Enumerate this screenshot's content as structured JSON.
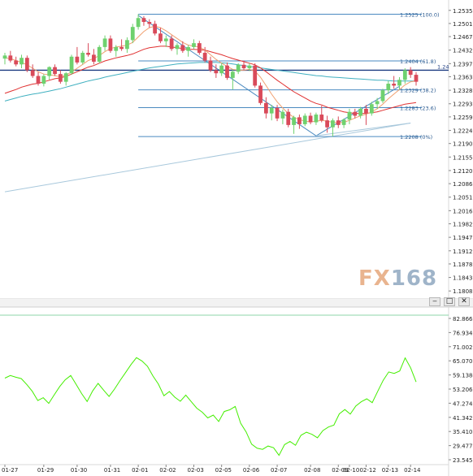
{
  "colors": {
    "background": "#ffffff",
    "grid": "#ececec",
    "up_candle": "#6fd16f",
    "down_candle": "#d94a5a",
    "ma_fast": "#f0a070",
    "ma_mid": "#e03030",
    "ma_slow": "#40b0c0",
    "trend_long": "#a8c8dc",
    "fib_line": "#4a8ac0",
    "current_price_line": "#1a3a80",
    "rsi_line": "#44ee00",
    "panel_separator": "#d0d0d0",
    "axis_text": "#222222"
  },
  "watermark": {
    "fx": "FX",
    "num": "168"
  },
  "window_buttons": {
    "minimize": "‒",
    "maximize": "□",
    "close": "✕"
  },
  "chart_data": [
    {
      "type": "candlestick",
      "panel": "price",
      "y_ticks": [
        "1.2535",
        "1.2501",
        "1.2467",
        "1.2432",
        "1.2397",
        "1.2363",
        "1.2328",
        "1.2293",
        "1.2259",
        "1.2224",
        "1.2190",
        "1.2155",
        "1.2120",
        "1.2086",
        "1.2051",
        "1.2016",
        "1.1982",
        "1.1947",
        "1.1912",
        "1.1878",
        "1.1843",
        "1.1808"
      ],
      "ylim": [
        1.18,
        1.2545
      ],
      "x_ticks": [
        "01-27",
        "01-29",
        "01-30",
        "01-31",
        "02-01",
        "02-02",
        "02-03",
        "02-05",
        "02-06",
        "02-07",
        "02-08",
        "02-09",
        "02-10",
        "02-12",
        "02-13",
        "02-14"
      ],
      "current_price_label": "1.24",
      "fibonacci": [
        {
          "label": "1.2525 (100.0)",
          "value": 1.2525
        },
        {
          "label": "1.2404 (61.8)",
          "value": 1.2404
        },
        {
          "label": "1.2329 (38.2)",
          "value": 1.2329
        },
        {
          "label": "1.2283 (23.6)",
          "value": 1.2283
        },
        {
          "label": "1.2208 (0%)",
          "value": 1.2208
        }
      ],
      "current_price": 1.238,
      "candles": [
        [
          1.241,
          1.2425,
          1.2395,
          1.2418
        ],
        [
          1.2418,
          1.243,
          1.24,
          1.2405
        ],
        [
          1.2405,
          1.2415,
          1.239,
          1.2395
        ],
        [
          1.2395,
          1.242,
          1.2385,
          1.2412
        ],
        [
          1.2412,
          1.2418,
          1.2375,
          1.238
        ],
        [
          1.238,
          1.2395,
          1.236,
          1.2365
        ],
        [
          1.2365,
          1.2375,
          1.234,
          1.2345
        ],
        [
          1.2345,
          1.237,
          1.2338,
          1.2365
        ],
        [
          1.2365,
          1.239,
          1.2355,
          1.2388
        ],
        [
          1.2388,
          1.2395,
          1.2365,
          1.237
        ],
        [
          1.237,
          1.238,
          1.2345,
          1.235
        ],
        [
          1.235,
          1.2375,
          1.234,
          1.2372
        ],
        [
          1.2372,
          1.242,
          1.2368,
          1.2415
        ],
        [
          1.2415,
          1.244,
          1.2395,
          1.24
        ],
        [
          1.24,
          1.243,
          1.2395,
          1.2425
        ],
        [
          1.2425,
          1.245,
          1.2415,
          1.242
        ],
        [
          1.242,
          1.2435,
          1.2395,
          1.2402
        ],
        [
          1.2402,
          1.2445,
          1.2398,
          1.244
        ],
        [
          1.244,
          1.247,
          1.243,
          1.2462
        ],
        [
          1.2462,
          1.247,
          1.2425,
          1.243
        ],
        [
          1.243,
          1.2445,
          1.2415,
          1.244
        ],
        [
          1.244,
          1.246,
          1.243,
          1.2435
        ],
        [
          1.2435,
          1.2465,
          1.2425,
          1.2458
        ],
        [
          1.2458,
          1.25,
          1.245,
          1.2492
        ],
        [
          1.2492,
          1.2525,
          1.2485,
          1.2515
        ],
        [
          1.2515,
          1.252,
          1.2495,
          1.2505
        ],
        [
          1.2505,
          1.2512,
          1.249,
          1.25
        ],
        [
          1.25,
          1.2508,
          1.247,
          1.2475
        ],
        [
          1.2475,
          1.249,
          1.245,
          1.2455
        ],
        [
          1.2455,
          1.247,
          1.244,
          1.2462
        ],
        [
          1.2462,
          1.247,
          1.243,
          1.2435
        ],
        [
          1.2435,
          1.245,
          1.242,
          1.2445
        ],
        [
          1.2445,
          1.2455,
          1.2425,
          1.243
        ],
        [
          1.243,
          1.2445,
          1.2415,
          1.244
        ],
        [
          1.244,
          1.246,
          1.2435,
          1.245
        ],
        [
          1.245,
          1.2456,
          1.242,
          1.2425
        ],
        [
          1.2425,
          1.244,
          1.24,
          1.2405
        ],
        [
          1.2405,
          1.2415,
          1.2375,
          1.238
        ],
        [
          1.238,
          1.2395,
          1.236,
          1.2372
        ],
        [
          1.2372,
          1.2398,
          1.2365,
          1.2392
        ],
        [
          1.2392,
          1.24,
          1.2355,
          1.236
        ],
        [
          1.236,
          1.2382,
          1.233,
          1.2376
        ],
        [
          1.2376,
          1.2398,
          1.237,
          1.2394
        ],
        [
          1.2394,
          1.2405,
          1.238,
          1.2385
        ],
        [
          1.2385,
          1.2398,
          1.2378,
          1.2392
        ],
        [
          1.2392,
          1.2398,
          1.2335,
          1.234
        ],
        [
          1.234,
          1.2348,
          1.229,
          1.2295
        ],
        [
          1.2295,
          1.231,
          1.2255,
          1.2268
        ],
        [
          1.2268,
          1.229,
          1.225,
          1.2282
        ],
        [
          1.2282,
          1.229,
          1.2248,
          1.2255
        ],
        [
          1.2255,
          1.2278,
          1.224,
          1.2272
        ],
        [
          1.2272,
          1.228,
          1.2232,
          1.2238
        ],
        [
          1.2238,
          1.2262,
          1.2215,
          1.2258
        ],
        [
          1.2258,
          1.2265,
          1.2228,
          1.224
        ],
        [
          1.224,
          1.2268,
          1.2235,
          1.2262
        ],
        [
          1.2262,
          1.227,
          1.224,
          1.2245
        ],
        [
          1.2245,
          1.227,
          1.2238,
          1.2265
        ],
        [
          1.2265,
          1.2288,
          1.2245,
          1.225
        ],
        [
          1.225,
          1.2262,
          1.2218,
          1.2232
        ],
        [
          1.2232,
          1.2255,
          1.2208,
          1.225
        ],
        [
          1.225,
          1.226,
          1.223,
          1.2238
        ],
        [
          1.2238,
          1.2255,
          1.223,
          1.2252
        ],
        [
          1.2252,
          1.228,
          1.224,
          1.2272
        ],
        [
          1.2272,
          1.228,
          1.2255,
          1.2262
        ],
        [
          1.2262,
          1.2285,
          1.2255,
          1.228
        ],
        [
          1.228,
          1.229,
          1.2238,
          1.2268
        ],
        [
          1.2268,
          1.2298,
          1.2262,
          1.2292
        ],
        [
          1.2292,
          1.2308,
          1.228,
          1.23
        ],
        [
          1.23,
          1.2332,
          1.2295,
          1.2328
        ],
        [
          1.2328,
          1.2352,
          1.2318,
          1.2345
        ],
        [
          1.2345,
          1.2365,
          1.2332,
          1.234
        ],
        [
          1.234,
          1.2362,
          1.233,
          1.2355
        ],
        [
          1.2355,
          1.2385,
          1.2345,
          1.238
        ],
        [
          1.238,
          1.2388,
          1.236,
          1.2368
        ],
        [
          1.2368,
          1.2375,
          1.234,
          1.235
        ]
      ],
      "ma_fast": [
        1.2412,
        1.241,
        1.2405,
        1.24,
        1.2394,
        1.2385,
        1.2376,
        1.237,
        1.2368,
        1.2366,
        1.2363,
        1.2368,
        1.2375,
        1.2385,
        1.2395,
        1.2405,
        1.241,
        1.2418,
        1.2428,
        1.2436,
        1.244,
        1.2442,
        1.2445,
        1.2452,
        1.2466,
        1.248,
        1.249,
        1.2494,
        1.249,
        1.2482,
        1.2472,
        1.2462,
        1.2452,
        1.2445,
        1.2442,
        1.244,
        1.2432,
        1.242,
        1.2408,
        1.2398,
        1.239,
        1.2382,
        1.238,
        1.238,
        1.2382,
        1.2378,
        1.2362,
        1.234,
        1.2318,
        1.2298,
        1.2282,
        1.2268,
        1.2258,
        1.2252,
        1.2248,
        1.2246,
        1.2248,
        1.225,
        1.2248,
        1.2245,
        1.2244,
        1.2245,
        1.225,
        1.2256,
        1.2262,
        1.2266,
        1.2272,
        1.228,
        1.2292,
        1.2306,
        1.2318,
        1.233,
        1.2342,
        1.235,
        1.2352
      ],
      "ma_mid": [
        1.232,
        1.2325,
        1.233,
        1.2336,
        1.234,
        1.2344,
        1.2346,
        1.235,
        1.2354,
        1.2358,
        1.236,
        1.2364,
        1.237,
        1.2376,
        1.2382,
        1.2388,
        1.2392,
        1.2398,
        1.2404,
        1.2408,
        1.2412,
        1.2415,
        1.2418,
        1.2422,
        1.2428,
        1.2434,
        1.2438,
        1.244,
        1.2442,
        1.2442,
        1.244,
        1.2438,
        1.2436,
        1.2434,
        1.2434,
        1.2433,
        1.2432,
        1.2428,
        1.2424,
        1.242,
        1.2415,
        1.241,
        1.2406,
        1.2402,
        1.2398,
        1.2394,
        1.2386,
        1.2376,
        1.2365,
        1.2354,
        1.2344,
        1.2334,
        1.2324,
        1.2316,
        1.2308,
        1.23,
        1.2294,
        1.229,
        1.2284,
        1.228,
        1.2276,
        1.2272,
        1.227,
        1.2268,
        1.2268,
        1.2268,
        1.227,
        1.2272,
        1.2276,
        1.228,
        1.2284,
        1.2288,
        1.2292,
        1.2294,
        1.2296
      ],
      "ma_slow": [
        1.23,
        1.2304,
        1.2308,
        1.2312,
        1.2315,
        1.2318,
        1.232,
        1.2323,
        1.2326,
        1.2329,
        1.2332,
        1.2336,
        1.234,
        1.2344,
        1.2348,
        1.2352,
        1.2355,
        1.2358,
        1.2362,
        1.2365,
        1.2368,
        1.2371,
        1.2374,
        1.2377,
        1.238,
        1.2383,
        1.2386,
        1.2388,
        1.239,
        1.2392,
        1.2394,
        1.2396,
        1.2397,
        1.2398,
        1.2399,
        1.24,
        1.24,
        1.24,
        1.24,
        1.2399,
        1.2398,
        1.2396,
        1.2394,
        1.2392,
        1.239,
        1.2388,
        1.2386,
        1.2384,
        1.2382,
        1.238,
        1.2378,
        1.2376,
        1.2374,
        1.2372,
        1.237,
        1.2368,
        1.2366,
        1.2365,
        1.2363,
        1.2362,
        1.2361,
        1.236,
        1.2359,
        1.2358,
        1.2357,
        1.2356,
        1.2355,
        1.2354,
        1.2354,
        1.2353,
        1.2352,
        1.2352,
        1.2352,
        1.2352,
        1.2352
      ],
      "trend_lines": [
        {
          "from": [
            0,
            1.2065
          ],
          "to": [
            73,
            1.2243
          ]
        },
        {
          "from": [
            24,
            1.2522
          ],
          "to": [
            56,
            1.221
          ]
        },
        {
          "from": [
            56,
            1.221
          ],
          "to": [
            71,
            1.2338
          ]
        },
        {
          "from": [
            56,
            1.221
          ],
          "to": [
            73,
            1.2243
          ]
        }
      ]
    },
    {
      "type": "line",
      "panel": "oscillator",
      "y_ticks": [
        "82.8667",
        "76.9347",
        "71.0026",
        "65.0705",
        "59.1384",
        "53.2063",
        "47.2742",
        "41.3421",
        "35.4100",
        "29.4779",
        "23.5458"
      ],
      "ylim": [
        23.5458,
        82.8667
      ],
      "values": [
        57.8,
        58.9,
        58.2,
        57.6,
        55.1,
        52.3,
        48.4,
        49.6,
        47.2,
        50.8,
        54.3,
        57.1,
        58.9,
        55.2,
        51.3,
        48.0,
        52.4,
        55.6,
        52.8,
        50.1,
        53.2,
        56.8,
        60.1,
        63.5,
        66.4,
        65.0,
        62.8,
        58.7,
        55.3,
        50.4,
        52.2,
        49.8,
        48.1,
        50.7,
        47.9,
        45.2,
        43.5,
        41.1,
        42.3,
        39.6,
        43.8,
        44.5,
        45.9,
        38.9,
        35.2,
        30.1,
        28.4,
        27.9,
        29.3,
        28.6,
        25.4,
        29.9,
        31.2,
        29.6,
        33.8,
        35.1,
        34.2,
        32.8,
        35.8,
        37.3,
        38.1,
        42.8,
        44.6,
        42.7,
        46.1,
        47.9,
        49.1,
        47.5,
        52.3,
        56.9,
        60.4,
        59.8,
        60.8,
        66.3,
        62.1,
        56.2
      ]
    }
  ]
}
